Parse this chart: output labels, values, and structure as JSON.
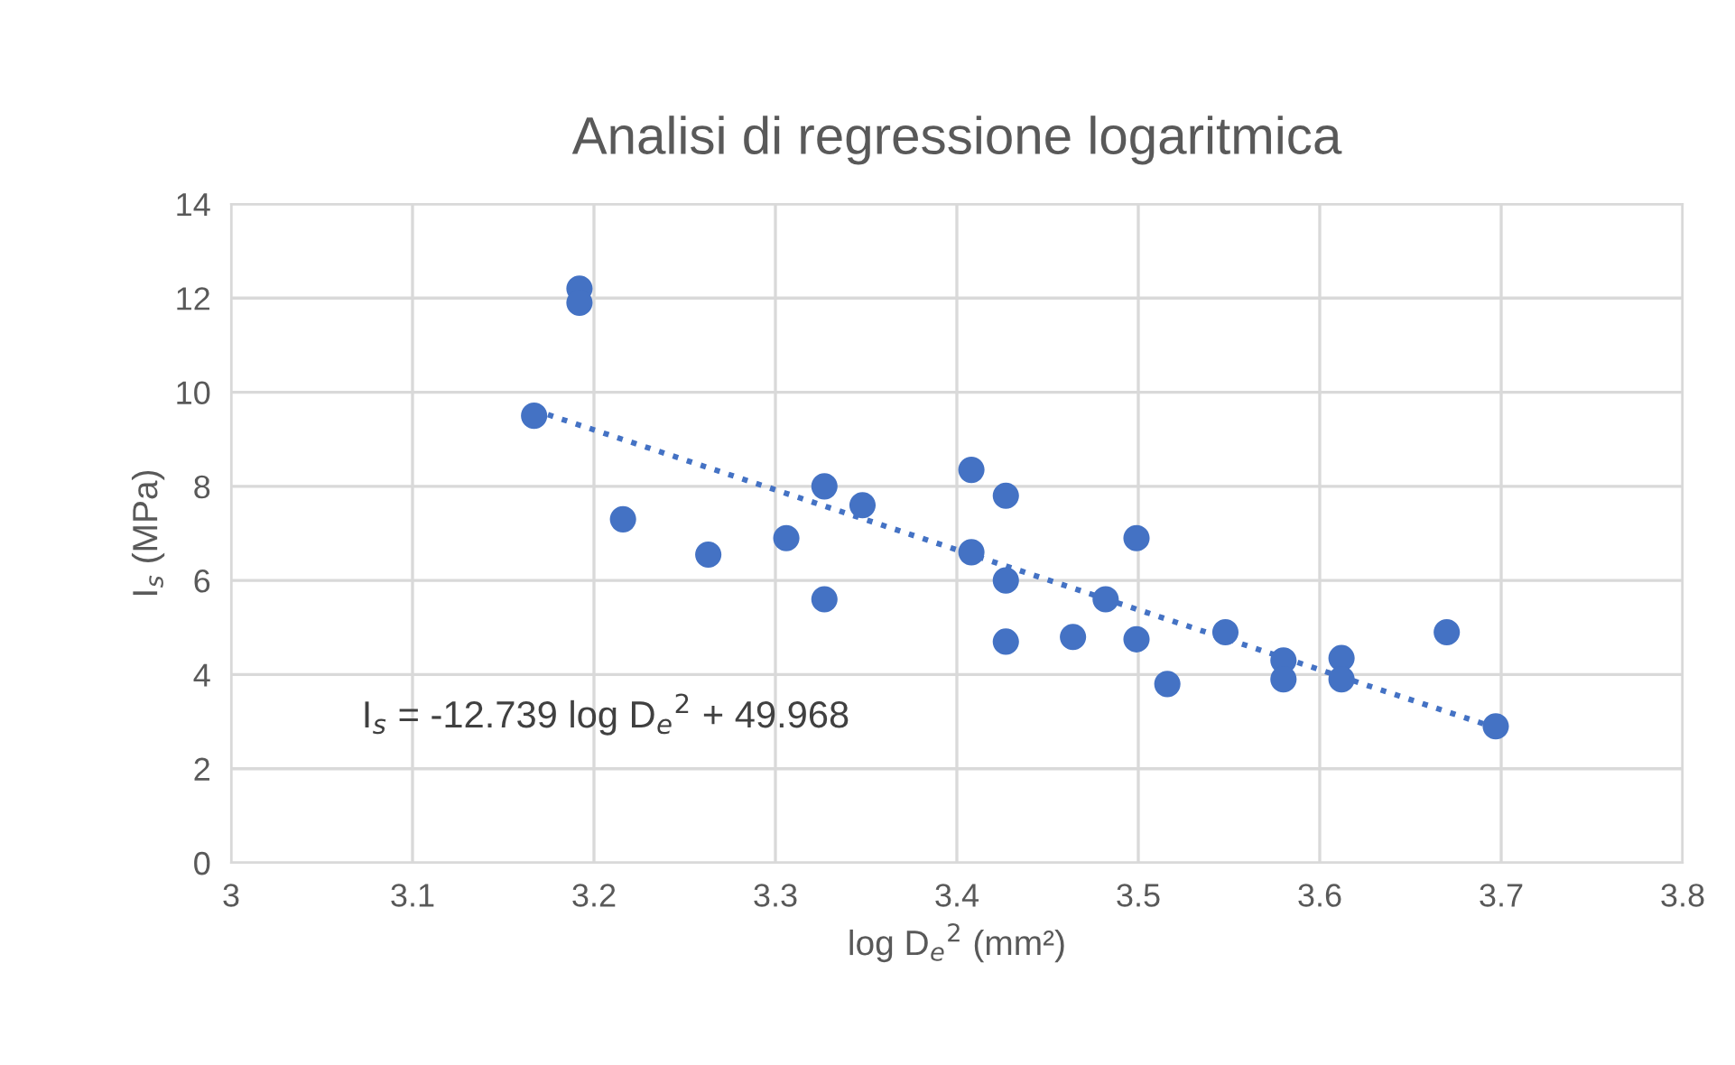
{
  "chart_data": {
    "type": "scatter",
    "title": "Analisi di regressione logaritmica",
    "xlabel": "log D$_{e}$$^{2}$ (mm²)",
    "ylabel": "I$_{s}$ (MPa)",
    "series": [
      {
        "color": "#4472c4",
        "marker": "circle",
        "x": [
          3.167,
          3.192,
          3.192,
          3.216,
          3.263,
          3.306,
          3.327,
          3.327,
          3.348,
          3.408,
          3.408,
          3.427,
          3.427,
          3.427,
          3.464,
          3.482,
          3.499,
          3.499,
          3.516,
          3.548,
          3.58,
          3.58,
          3.612,
          3.612,
          3.67,
          3.697
        ],
        "values": [
          9.5,
          12.2,
          11.9,
          7.3,
          6.55,
          6.9,
          8.0,
          5.6,
          7.6,
          8.35,
          6.6,
          7.8,
          6.0,
          4.7,
          4.8,
          5.6,
          6.9,
          4.75,
          3.8,
          4.9,
          4.3,
          3.9,
          4.35,
          3.9,
          4.9,
          2.9
        ]
      },
      {
        "type": "line",
        "color": "#4472c4",
        "line_style": "dotted",
        "x": [
          3.167,
          3.7
        ],
        "values": [
          9.62,
          2.83
        ]
      }
    ],
    "annotations": [
      "I$_{s}$ = -12.739 log D$_{e}$$^{2}$ + 49.968"
    ],
    "xlim": [
      3,
      3.8
    ],
    "xticks": [
      {
        "value": 3,
        "label": "3"
      },
      3.1,
      3.2,
      3.3,
      3.4,
      3.5,
      3.6,
      3.7,
      3.8
    ],
    "ylim": [
      0,
      14
    ],
    "yticks": [
      0,
      2,
      4,
      6,
      8,
      10,
      12,
      14
    ],
    "grid": true,
    "legend": false
  }
}
